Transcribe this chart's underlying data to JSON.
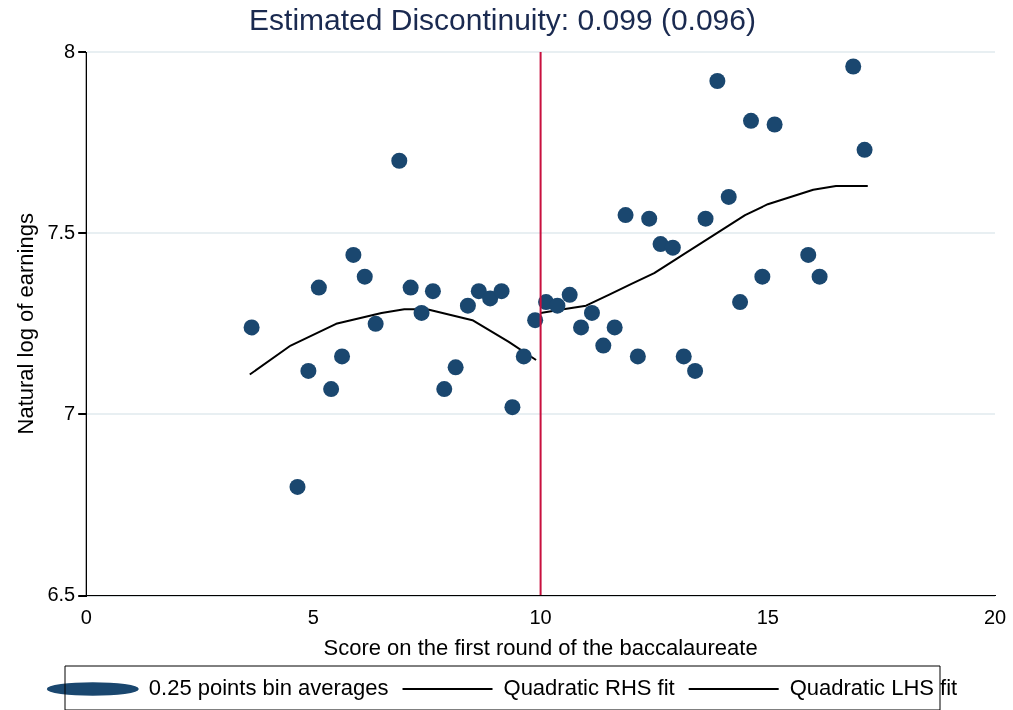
{
  "chart_data": {
    "type": "scatter",
    "title": "Estimated Discontinuity: 0.099 (0.096)",
    "xlabel": "Score on the first round of the baccalaureate",
    "ylabel": "Natural log of earnings",
    "xlim": [
      0,
      20
    ],
    "xticks": [
      0,
      5,
      10,
      15,
      20
    ],
    "ylim": [
      6.5,
      8
    ],
    "yticks": [
      6.5,
      7,
      7.5,
      8
    ],
    "grid": "y",
    "legend": "bottom",
    "ref_lines": [
      {
        "axis": "x",
        "value": 10,
        "color": "#c8103e"
      }
    ],
    "series": [
      {
        "name": "0.25 points bin averages",
        "type": "scatter",
        "color": "#1a476f",
        "marker": "circle",
        "x": [
          3.64,
          4.65,
          4.89,
          5.12,
          5.39,
          5.63,
          5.88,
          6.13,
          6.37,
          6.89,
          7.14,
          7.38,
          7.63,
          7.88,
          8.13,
          8.4,
          8.64,
          8.89,
          9.14,
          9.38,
          9.63,
          9.88,
          10.12,
          10.37,
          10.64,
          10.89,
          11.13,
          11.38,
          11.63,
          11.87,
          12.14,
          12.39,
          12.64,
          12.91,
          13.15,
          13.4,
          13.63,
          13.89,
          14.14,
          14.39,
          14.63,
          14.88,
          15.15,
          15.89,
          16.14,
          16.88,
          17.13
        ],
        "values": [
          7.24,
          6.8,
          7.12,
          7.35,
          7.07,
          7.16,
          7.44,
          7.38,
          7.25,
          7.7,
          7.35,
          7.28,
          7.34,
          7.07,
          7.13,
          7.3,
          7.34,
          7.32,
          7.34,
          7.02,
          7.16,
          7.26,
          7.31,
          7.3,
          7.33,
          7.24,
          7.28,
          7.19,
          7.24,
          7.55,
          7.16,
          7.54,
          7.47,
          7.46,
          7.16,
          7.12,
          7.54,
          7.92,
          7.6,
          7.31,
          7.81,
          7.38,
          7.8,
          7.44,
          7.38,
          7.96,
          7.73
        ]
      },
      {
        "name": "Quadratic RHS fit",
        "type": "line",
        "color": "#000000",
        "marker": "none",
        "line_style": "solid",
        "x": [
          10,
          10.5,
          11,
          11.5,
          12,
          12.5,
          13,
          13.5,
          14,
          14.5,
          15,
          15.5,
          16,
          16.5,
          17.2
        ],
        "values": [
          7.28,
          7.29,
          7.3,
          7.33,
          7.36,
          7.39,
          7.43,
          7.47,
          7.51,
          7.55,
          7.58,
          7.6,
          7.62,
          7.63,
          7.63
        ]
      },
      {
        "name": "Quadratic LHS fit",
        "type": "line",
        "color": "#000000",
        "marker": "none",
        "line_style": "solid",
        "x": [
          3.6,
          4.5,
          5.5,
          6.5,
          7,
          7.5,
          8.5,
          9.3,
          9.9
        ],
        "values": [
          7.11,
          7.19,
          7.25,
          7.28,
          7.29,
          7.29,
          7.26,
          7.2,
          7.15
        ]
      }
    ]
  }
}
